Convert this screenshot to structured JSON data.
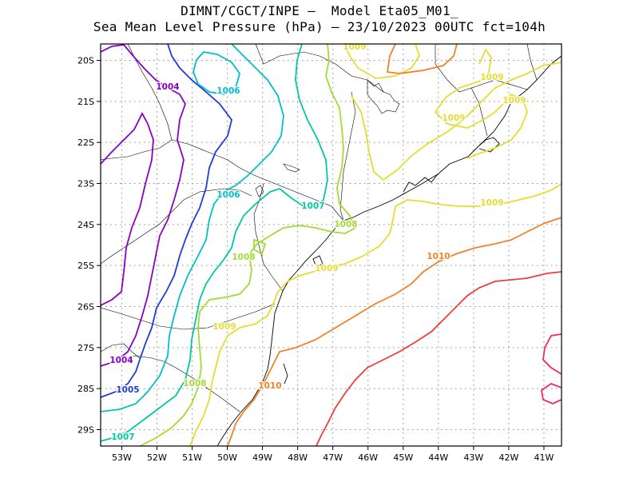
{
  "header": {
    "title_line1": "DIMNT/CGCT/INPE –  Model Eta05_M01_",
    "title_line2": "Sea Mean Level Pressure (hPa) – 23/10/2023 00UTC fct=104h"
  },
  "map": {
    "lon_range": [
      -53.6,
      -40.5
    ],
    "lat_range": [
      -29.4,
      -19.6
    ],
    "x_ticks": [
      "53W",
      "52W",
      "51W",
      "50W",
      "49W",
      "48W",
      "47W",
      "46W",
      "45W",
      "44W",
      "43W",
      "42W",
      "41W"
    ],
    "y_ticks": [
      "20S",
      "21S",
      "22S",
      "23S",
      "24S",
      "25S",
      "26S",
      "27S",
      "28S",
      "29S"
    ],
    "grid": "dotted",
    "contour_colors": {
      "1004": "#8a00c8",
      "1005": "#1e3cdc",
      "1006": "#00c0c8",
      "1007": "#00c8a0",
      "1008": "#a0dc32",
      "1009": "#e6dc32",
      "1010": "#f08228",
      "1011": "#f03c3c",
      "1012": "#f0286e"
    },
    "contour_labels": [
      {
        "text": "1004",
        "level": "1004"
      },
      {
        "text": "1006",
        "level": "1006"
      },
      {
        "text": "1009",
        "level": "1009"
      },
      {
        "text": "1009",
        "level": "1009"
      },
      {
        "text": "1009",
        "level": "1009"
      },
      {
        "text": "1009",
        "level": "1009"
      },
      {
        "text": "1006",
        "level": "1006"
      },
      {
        "text": "1007",
        "level": "1007"
      },
      {
        "text": "1008",
        "level": "1008"
      },
      {
        "text": "1009",
        "level": "1009"
      },
      {
        "text": "1008",
        "level": "1008"
      },
      {
        "text": "1009",
        "level": "1009"
      },
      {
        "text": "1010",
        "level": "1010"
      },
      {
        "text": "1009",
        "level": "1009"
      },
      {
        "text": "1004",
        "level": "1004"
      },
      {
        "text": "1005",
        "level": "1005"
      },
      {
        "text": "1008",
        "level": "1008"
      },
      {
        "text": "1010",
        "level": "1010"
      },
      {
        "text": "1007",
        "level": "1007"
      }
    ]
  }
}
